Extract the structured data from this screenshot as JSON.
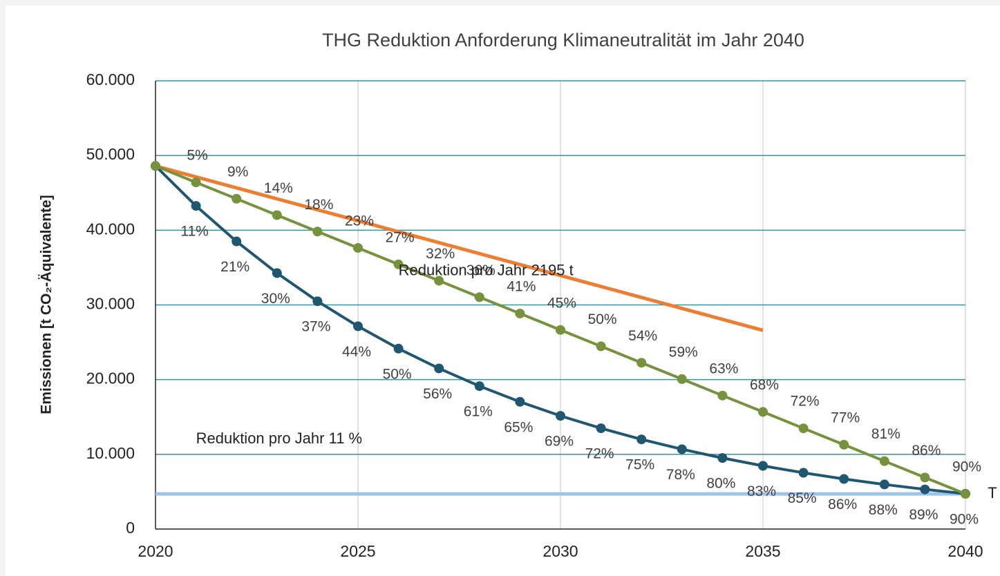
{
  "chart_data": {
    "type": "line",
    "title": "THG Reduktion Anforderung Klimaneutralität im Jahr 2040",
    "y_label": "Emissionen [t CO₂-Äquivalente]",
    "x": [
      2020,
      2021,
      2022,
      2023,
      2024,
      2025,
      2026,
      2027,
      2028,
      2029,
      2030,
      2031,
      2032,
      2033,
      2034,
      2035,
      2036,
      2037,
      2038,
      2039,
      2040
    ],
    "series": [
      {
        "color": "#1f5670",
        "values": [
          48600,
          43250,
          38500,
          34260,
          30490,
          27140,
          24150,
          21500,
          19130,
          17030,
          15150,
          13490,
          12000,
          10680,
          9510,
          8460,
          7530,
          6700,
          5970,
          5310,
          4730
        ],
        "value_labels": [
          null,
          "11%",
          "21%",
          "30%",
          "37%",
          "44%",
          "50%",
          "56%",
          "61%",
          "65%",
          "69%",
          "72%",
          "75%",
          "78%",
          "80%",
          "83%",
          "85%",
          "86%",
          "88%",
          "89%",
          "90%"
        ]
      },
      {
        "color": "#76923c",
        "values": [
          48600,
          46400,
          44210,
          42020,
          39820,
          37630,
          35430,
          33240,
          31040,
          28850,
          26650,
          24460,
          22260,
          20070,
          17870,
          15680,
          13480,
          11290,
          9090,
          6900,
          4700
        ],
        "value_labels": [
          null,
          "5%",
          "9%",
          "14%",
          "18%",
          "23%",
          "27%",
          "32%",
          "36%",
          "41%",
          "45%",
          "50%",
          "54%",
          "59%",
          "63%",
          "68%",
          "72%",
          "77%",
          "81%",
          "86%",
          "90%"
        ]
      }
    ],
    "reference_lines": [
      {
        "color": "#ed7d31",
        "x": [
          2020,
          2035
        ],
        "values": [
          48600,
          26600
        ]
      },
      {
        "color": "#9dc3e6",
        "x": [
          2020,
          2040
        ],
        "values": [
          4700,
          4700
        ]
      }
    ],
    "annotations": [
      {
        "text": "Reduktion pro Jahr 2195 t",
        "x": 2026.0,
        "y": 34500
      },
      {
        "text": "Reduktion pro Jahr 11 %",
        "x": 2021.0,
        "y": 12000
      },
      {
        "text": "T",
        "x": 2040.55,
        "y": 4700
      }
    ],
    "xlim": [
      2020,
      2040
    ],
    "xticks": [
      2020,
      2025,
      2030,
      2035,
      2040
    ],
    "ylim": [
      0,
      60000
    ],
    "yticks": [
      0,
      {
        "value": 10000,
        "label": "10.000"
      },
      {
        "value": 20000,
        "label": "20.000"
      },
      {
        "value": 30000,
        "label": "30.000"
      },
      {
        "value": 40000,
        "label": "40.000"
      },
      {
        "value": 50000,
        "label": "50.000"
      },
      {
        "value": 60000,
        "label": "60.000"
      }
    ],
    "grid": true
  }
}
